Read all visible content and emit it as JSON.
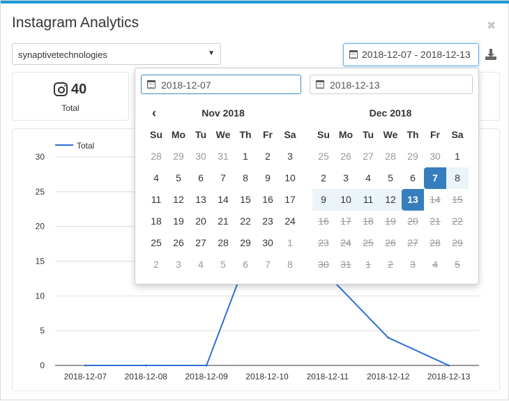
{
  "app": {
    "title": "Instagram Analytics"
  },
  "account_select": {
    "value": "synaptivetechnologies"
  },
  "date_range": {
    "value": "2018-12-07 - 2018-12-13"
  },
  "summary_card": {
    "value": "40",
    "label": "Total"
  },
  "icons": {
    "close": "close-icon",
    "calendar": "calendar-icon",
    "download": "download-icon",
    "instagram": "instagram-icon",
    "prev": "chevron-left-icon"
  },
  "colors": {
    "accent": "#1b9ad6",
    "series": "#2e6ed6",
    "selected": "#357ebd",
    "range": "#ebf4f8"
  },
  "picker": {
    "start_input": "2018-12-07",
    "end_input": "2018-12-13",
    "weekdays": [
      "Su",
      "Mo",
      "Tu",
      "We",
      "Th",
      "Fr",
      "Sa"
    ],
    "left": {
      "month": "Nov 2018",
      "weeks": [
        [
          {
            "d": "28",
            "s": "off"
          },
          {
            "d": "29",
            "s": "off"
          },
          {
            "d": "30",
            "s": "off"
          },
          {
            "d": "31",
            "s": "off"
          },
          {
            "d": "1",
            "s": ""
          },
          {
            "d": "2",
            "s": ""
          },
          {
            "d": "3",
            "s": ""
          }
        ],
        [
          {
            "d": "4",
            "s": ""
          },
          {
            "d": "5",
            "s": ""
          },
          {
            "d": "6",
            "s": ""
          },
          {
            "d": "7",
            "s": ""
          },
          {
            "d": "8",
            "s": ""
          },
          {
            "d": "9",
            "s": ""
          },
          {
            "d": "10",
            "s": ""
          }
        ],
        [
          {
            "d": "11",
            "s": ""
          },
          {
            "d": "12",
            "s": ""
          },
          {
            "d": "13",
            "s": ""
          },
          {
            "d": "14",
            "s": ""
          },
          {
            "d": "15",
            "s": ""
          },
          {
            "d": "16",
            "s": ""
          },
          {
            "d": "17",
            "s": ""
          }
        ],
        [
          {
            "d": "18",
            "s": ""
          },
          {
            "d": "19",
            "s": ""
          },
          {
            "d": "20",
            "s": ""
          },
          {
            "d": "21",
            "s": ""
          },
          {
            "d": "22",
            "s": ""
          },
          {
            "d": "23",
            "s": ""
          },
          {
            "d": "24",
            "s": ""
          }
        ],
        [
          {
            "d": "25",
            "s": ""
          },
          {
            "d": "26",
            "s": ""
          },
          {
            "d": "27",
            "s": ""
          },
          {
            "d": "28",
            "s": ""
          },
          {
            "d": "29",
            "s": ""
          },
          {
            "d": "30",
            "s": ""
          },
          {
            "d": "1",
            "s": "off"
          }
        ],
        [
          {
            "d": "2",
            "s": "off"
          },
          {
            "d": "3",
            "s": "off"
          },
          {
            "d": "4",
            "s": "off"
          },
          {
            "d": "5",
            "s": "off"
          },
          {
            "d": "6",
            "s": "off"
          },
          {
            "d": "7",
            "s": "off"
          },
          {
            "d": "8",
            "s": "off"
          }
        ]
      ]
    },
    "right": {
      "month": "Dec 2018",
      "weeks": [
        [
          {
            "d": "25",
            "s": "off"
          },
          {
            "d": "26",
            "s": "off"
          },
          {
            "d": "27",
            "s": "off"
          },
          {
            "d": "28",
            "s": "off"
          },
          {
            "d": "29",
            "s": "off"
          },
          {
            "d": "30",
            "s": "off"
          },
          {
            "d": "1",
            "s": ""
          }
        ],
        [
          {
            "d": "2",
            "s": ""
          },
          {
            "d": "3",
            "s": ""
          },
          {
            "d": "4",
            "s": ""
          },
          {
            "d": "5",
            "s": ""
          },
          {
            "d": "6",
            "s": ""
          },
          {
            "d": "7",
            "s": "sel-start"
          },
          {
            "d": "8",
            "s": "inrange"
          }
        ],
        [
          {
            "d": "9",
            "s": "inrange"
          },
          {
            "d": "10",
            "s": "inrange"
          },
          {
            "d": "11",
            "s": "inrange"
          },
          {
            "d": "12",
            "s": "inrange"
          },
          {
            "d": "13",
            "s": "sel-end"
          },
          {
            "d": "14",
            "s": "dis"
          },
          {
            "d": "15",
            "s": "dis"
          }
        ],
        [
          {
            "d": "16",
            "s": "dis"
          },
          {
            "d": "17",
            "s": "dis"
          },
          {
            "d": "18",
            "s": "dis"
          },
          {
            "d": "19",
            "s": "dis"
          },
          {
            "d": "20",
            "s": "dis"
          },
          {
            "d": "21",
            "s": "dis"
          },
          {
            "d": "22",
            "s": "dis"
          }
        ],
        [
          {
            "d": "23",
            "s": "dis"
          },
          {
            "d": "24",
            "s": "dis"
          },
          {
            "d": "25",
            "s": "dis"
          },
          {
            "d": "26",
            "s": "dis"
          },
          {
            "d": "27",
            "s": "dis"
          },
          {
            "d": "28",
            "s": "dis"
          },
          {
            "d": "29",
            "s": "dis"
          }
        ],
        [
          {
            "d": "30",
            "s": "dis"
          },
          {
            "d": "31",
            "s": "dis"
          },
          {
            "d": "1",
            "s": "dis"
          },
          {
            "d": "2",
            "s": "dis"
          },
          {
            "d": "3",
            "s": "dis"
          },
          {
            "d": "4",
            "s": "dis"
          },
          {
            "d": "5",
            "s": "dis"
          }
        ]
      ]
    }
  },
  "chart_data": {
    "type": "line",
    "x": [
      "2018-12-07",
      "2018-12-08",
      "2018-12-09",
      "2018-12-10",
      "2018-12-11",
      "2018-12-12",
      "2018-12-13"
    ],
    "series": [
      {
        "name": "Total",
        "values": [
          0,
          0,
          0,
          23,
          13,
          4,
          0
        ]
      }
    ],
    "ylim": [
      0,
      30
    ],
    "yticks": [
      0,
      5,
      10,
      15,
      20,
      25,
      30
    ],
    "legend": "top-left",
    "grid": true
  }
}
